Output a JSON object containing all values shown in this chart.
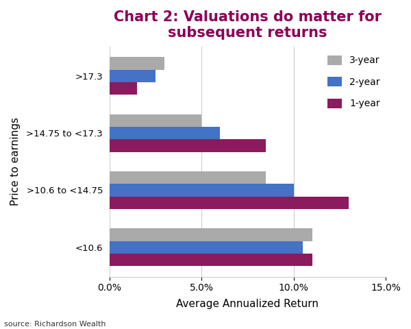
{
  "title": "Chart 2: Valuations do matter for\nsubsequent returns",
  "title_color": "#8B0057",
  "title_fontsize": 15,
  "title_fontweight": "bold",
  "categories_display": [
    ">17.3",
    ">14.75 to <17.3",
    ">10.6 to <14.75",
    "<10.6"
  ],
  "series": {
    "3-year": [
      0.03,
      0.05,
      0.085,
      0.11
    ],
    "2-year": [
      0.025,
      0.06,
      0.1,
      0.105
    ],
    "1-year": [
      0.015,
      0.085,
      0.13,
      0.11
    ]
  },
  "series_colors": {
    "3-year": "#AAAAAA",
    "2-year": "#4472C4",
    "1-year": "#8B1A5E"
  },
  "xlabel": "Average Annualized Return",
  "ylabel": "Price to earnings",
  "xlim": [
    0.0,
    0.15
  ],
  "xticks": [
    0.0,
    0.05,
    0.1,
    0.15
  ],
  "xtick_labels": [
    "0.0%",
    "5.0%",
    "10.0%",
    "15.0%"
  ],
  "source_text": "source: Richardson Wealth",
  "background_color": "#ffffff",
  "bar_height": 0.22,
  "legend_order": [
    "3-year",
    "2-year",
    "1-year"
  ],
  "grid_color": "#cccccc",
  "border_color": "#cccccc"
}
